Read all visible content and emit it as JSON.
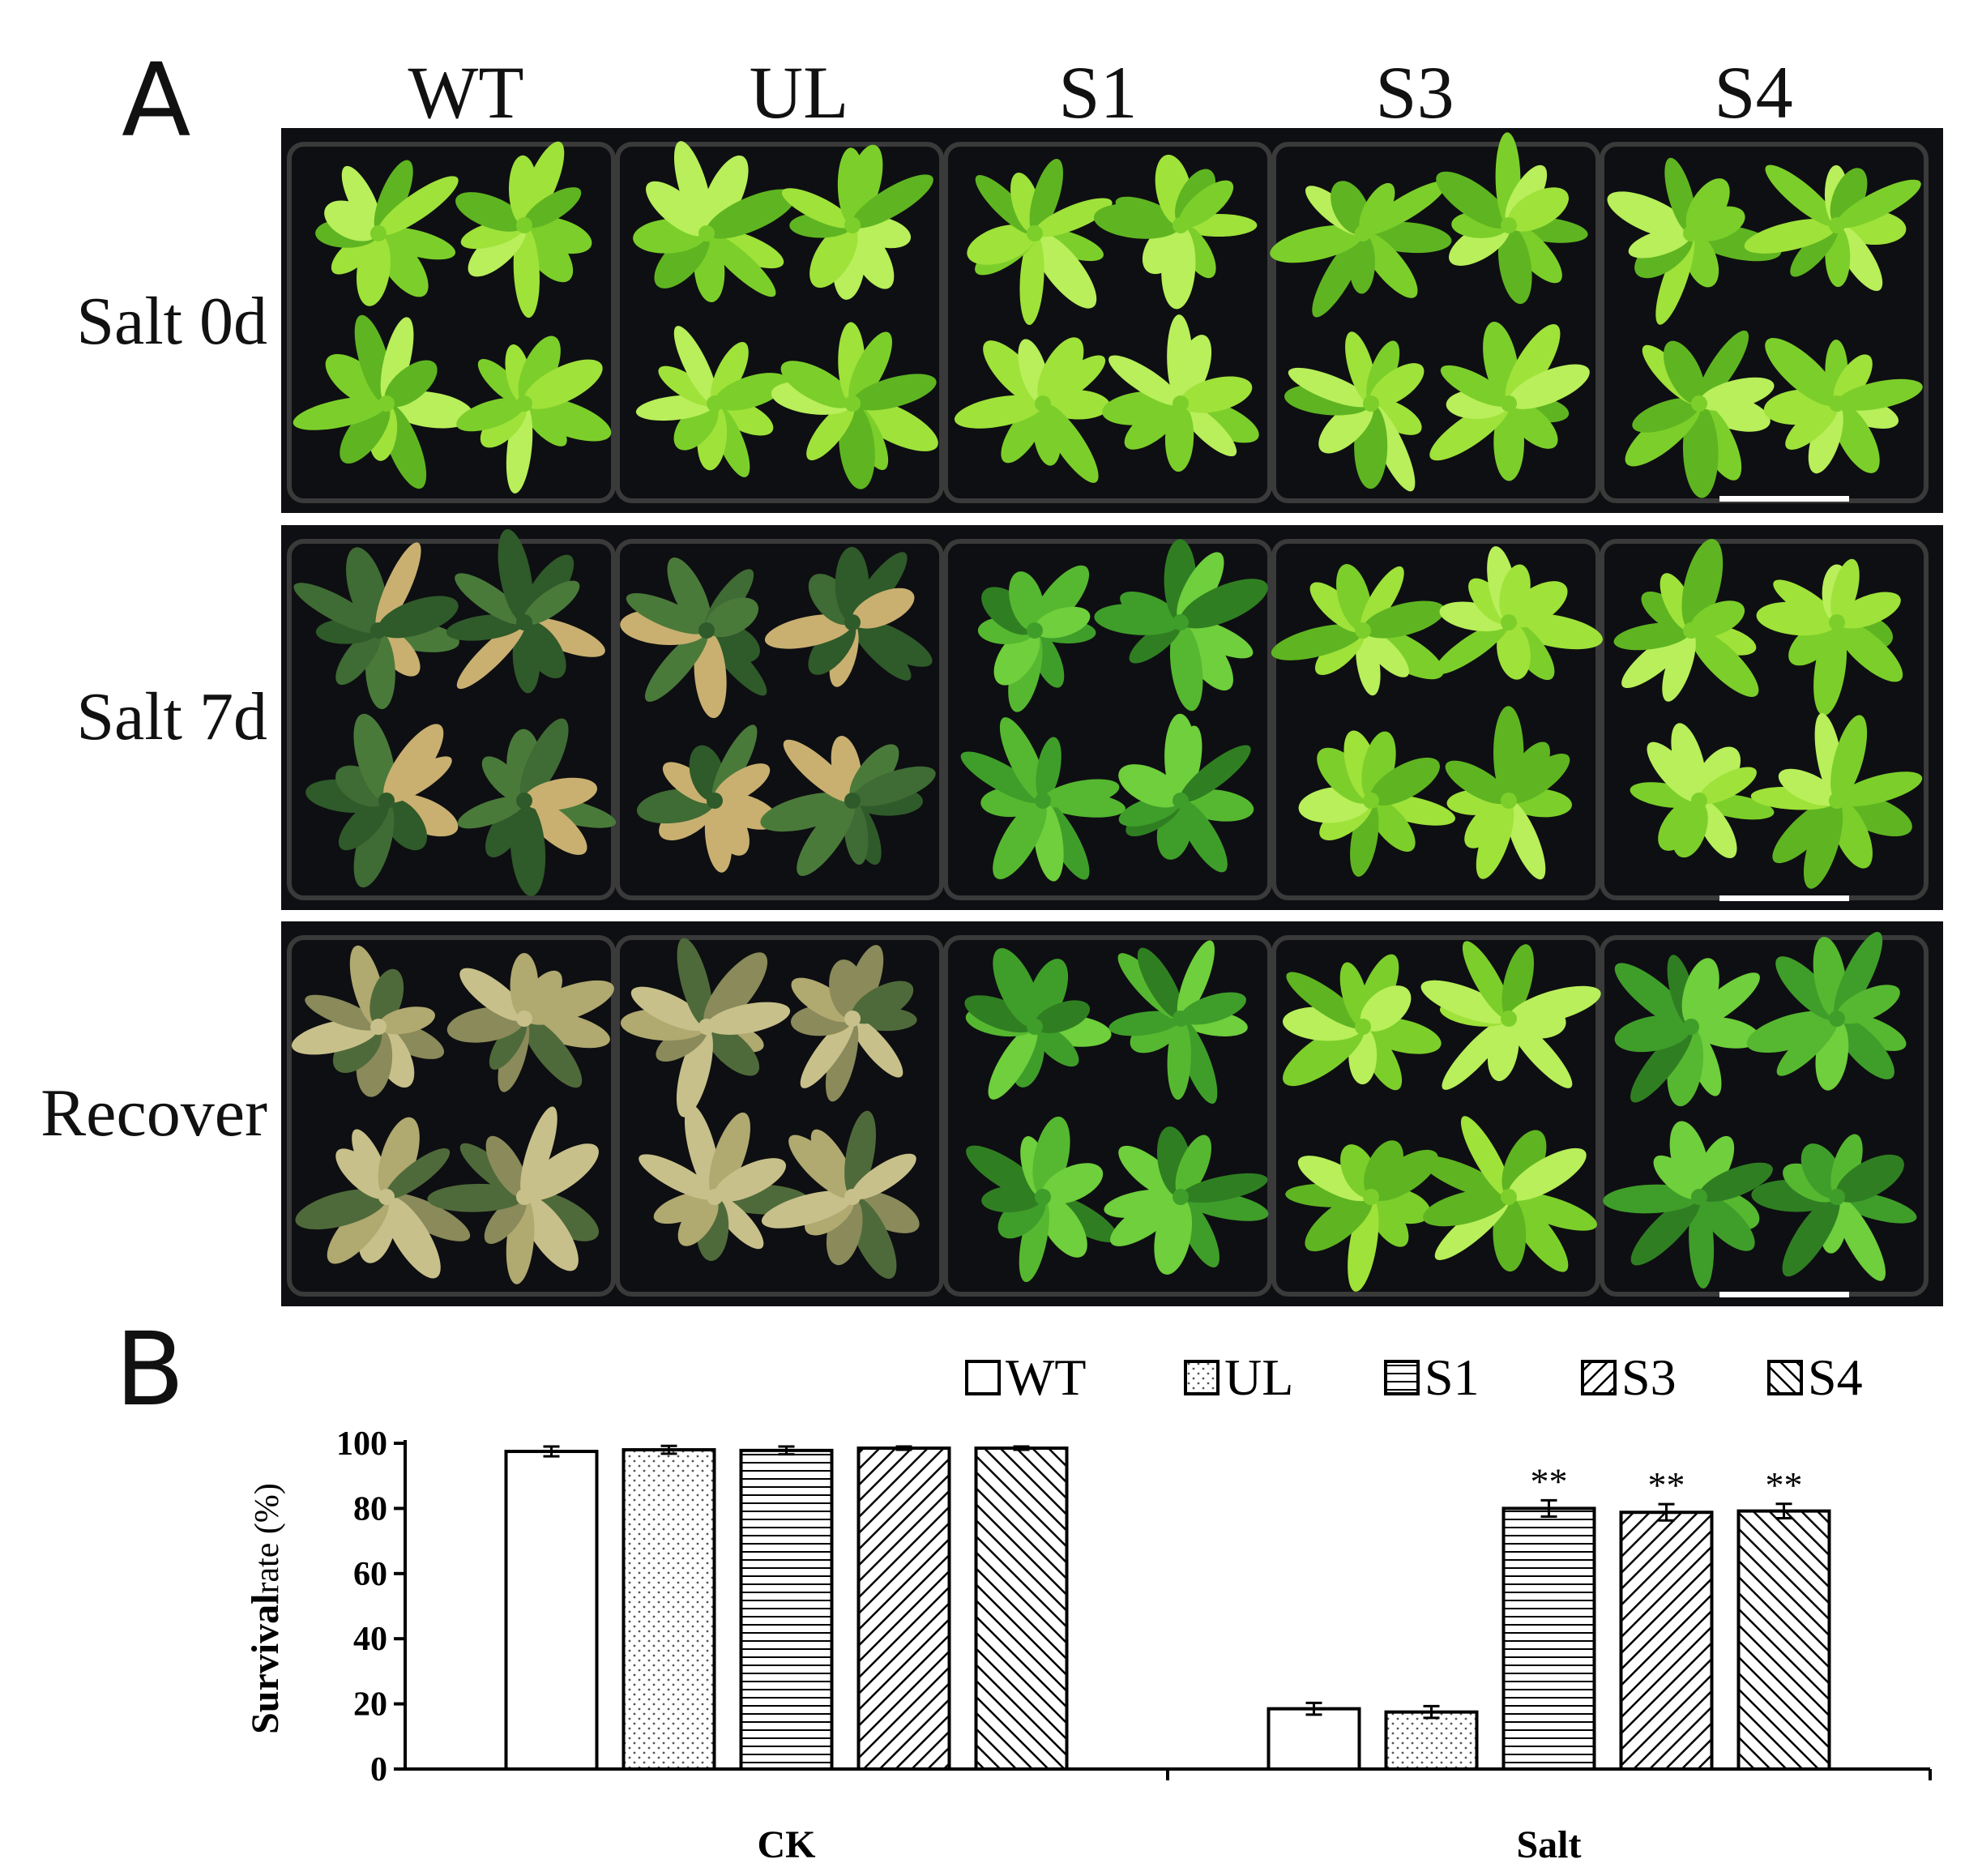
{
  "panel_labels": [
    "A",
    "B"
  ],
  "photo_panel": {
    "columns": [
      "WT",
      "UL",
      "S1",
      "S3",
      "S4"
    ],
    "rows": [
      "Salt 0d",
      "Salt 7d",
      "Recover"
    ],
    "row_health": [
      [
        "healthy",
        "healthy",
        "healthy",
        "healthy",
        "healthy"
      ],
      [
        "stressed",
        "stressed",
        "healthy-dark",
        "healthy",
        "healthy"
      ],
      [
        "dead",
        "dead",
        "healthy-dark",
        "healthy",
        "healthy-dark"
      ]
    ]
  },
  "chart_data": {
    "type": "bar",
    "categories": [
      "CK",
      "Salt"
    ],
    "series": [
      {
        "name": "WT",
        "pattern": "none",
        "values": [
          97.5,
          18.5
        ],
        "errors": [
          1.5,
          1.8
        ],
        "significance": [
          "",
          ""
        ]
      },
      {
        "name": "UL",
        "pattern": "dots",
        "values": [
          98,
          17.5
        ],
        "errors": [
          1.2,
          1.8
        ],
        "significance": [
          "",
          ""
        ]
      },
      {
        "name": "S1",
        "pattern": "horizontal-lines",
        "values": [
          97.8,
          80
        ],
        "errors": [
          1.2,
          2.5
        ],
        "significance": [
          "",
          "**"
        ]
      },
      {
        "name": "S3",
        "pattern": "diagonal-back",
        "values": [
          98.5,
          78.8
        ],
        "errors": [
          0.5,
          2.5
        ],
        "significance": [
          "",
          "**"
        ]
      },
      {
        "name": "S4",
        "pattern": "diagonal-forward",
        "values": [
          98.5,
          79.2
        ],
        "errors": [
          0.5,
          2.2
        ],
        "significance": [
          "",
          "**"
        ]
      }
    ],
    "ylabel_bold": "Survival",
    "ylabel_rest": "rate (%)",
    "xlabel": "",
    "ylim": [
      0,
      100
    ],
    "yticks": [
      0,
      20,
      40,
      60,
      80,
      100
    ],
    "legend_position": "top-right",
    "grid": false,
    "colors": {
      "bar_fill": "#ffffff",
      "bar_stroke": "#000000",
      "axis": "#000000"
    }
  }
}
